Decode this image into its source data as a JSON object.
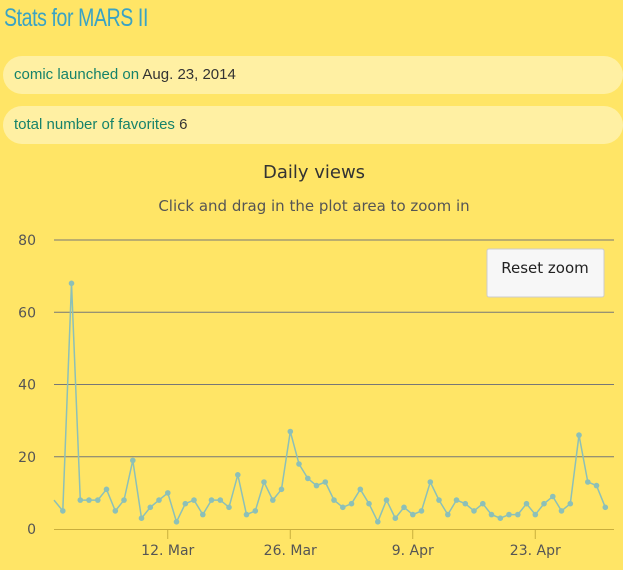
{
  "page": {
    "title": "Stats for MARS II",
    "launch_label": "comic launched on",
    "launch_date": "Aug. 23, 2014",
    "favorites_label": "total number of favorites",
    "favorites_count": "6",
    "reset_zoom_label": "Reset zoom"
  },
  "colors": {
    "background": "#ffe566",
    "pill": "#fff0a3",
    "title": "#3aa3c4",
    "label": "#16826a",
    "series": "#8cc0b8",
    "grid": "#777777"
  },
  "chart_data": {
    "type": "line",
    "title": "Daily views",
    "subtitle": "Click and drag in the plot area to zoom in",
    "xlabel": "",
    "ylabel": "",
    "ylim": [
      0,
      80
    ],
    "y_ticks": [
      0,
      20,
      40,
      60,
      80
    ],
    "x_range": [
      "2014-02-27",
      "2014-05-02"
    ],
    "x_ticks": [
      {
        "date": "2014-03-12",
        "label": "12. Mar"
      },
      {
        "date": "2014-03-26",
        "label": "26. Mar"
      },
      {
        "date": "2014-04-09",
        "label": "9. Apr"
      },
      {
        "date": "2014-04-23",
        "label": "23. Apr"
      }
    ],
    "grid": true,
    "legend": "none",
    "series": [
      {
        "start_date": "2014-02-28",
        "values": [
          5,
          68,
          8,
          8,
          8,
          11,
          5,
          8,
          19,
          3,
          6,
          8,
          10,
          2,
          7,
          8,
          4,
          8,
          8,
          6,
          15,
          4,
          5,
          13,
          8,
          11,
          27,
          18,
          14,
          12,
          13,
          8,
          6,
          7,
          11,
          7,
          2,
          8,
          3,
          6,
          4,
          5,
          13,
          8,
          4,
          8,
          7,
          5,
          7,
          4,
          3,
          4,
          4,
          7,
          4,
          7,
          9,
          5,
          7,
          26,
          13,
          12,
          6
        ]
      }
    ]
  }
}
